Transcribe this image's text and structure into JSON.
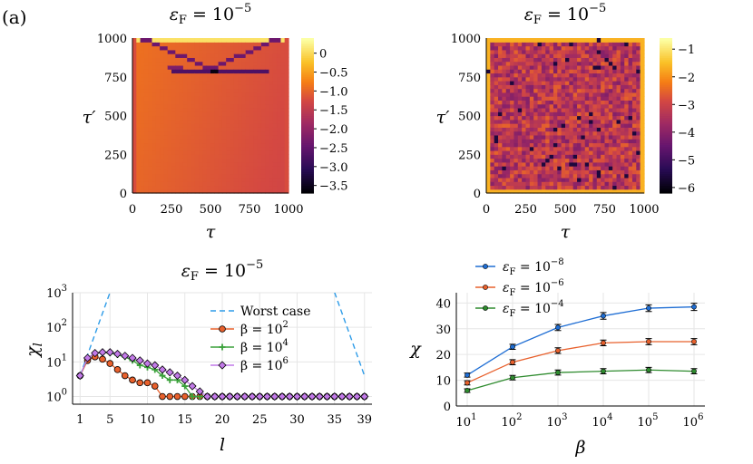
{
  "figure": {
    "panel_label": "(a)"
  },
  "chart_data": [
    {
      "type": "heatmap",
      "title": "εF = 10^-5",
      "title_sym": "ε",
      "title_sub": "F",
      "title_rest": " = 10",
      "title_exp": "−5",
      "xlabel": "τ",
      "ylabel": "τ′",
      "xlim": [
        0,
        1000
      ],
      "ylim": [
        0,
        1000
      ],
      "xticks": [
        "0",
        "250",
        "500",
        "750",
        "1000"
      ],
      "yticks": [
        "0",
        "250",
        "500",
        "750",
        "1000"
      ],
      "colorbar": {
        "min": -3.7,
        "max": 0.4,
        "ticks": [
          "0",
          "−0.5",
          "−1.0",
          "−1.5",
          "−2.0",
          "−2.5",
          "−3.0",
          "−3.5"
        ],
        "tick_values": [
          0,
          -0.5,
          -1.0,
          -1.5,
          -2.0,
          -2.5,
          -3.0,
          -3.5
        ],
        "colormap": "inferno"
      }
    },
    {
      "type": "heatmap",
      "title": "εF = 10^-5",
      "title_sym": "ε",
      "title_sub": "F",
      "title_rest": " = 10",
      "title_exp": "−5",
      "xlabel": "τ",
      "ylabel": "τ′",
      "xlim": [
        0,
        1000
      ],
      "ylim": [
        0,
        1000
      ],
      "xticks": [
        "0",
        "250",
        "500",
        "750",
        "1000"
      ],
      "yticks": [
        "0",
        "250",
        "500",
        "750",
        "1000"
      ],
      "colorbar": {
        "min": -6.2,
        "max": -0.6,
        "ticks": [
          "−1",
          "−2",
          "−3",
          "−4",
          "−5",
          "−6"
        ],
        "tick_values": [
          -1,
          -2,
          -3,
          -4,
          -5,
          -6
        ],
        "colormap": "inferno"
      }
    },
    {
      "type": "line",
      "title": "εF = 10^-5",
      "title_sym": "ε",
      "title_sub": "F",
      "title_rest": " = 10",
      "title_exp": "−5",
      "xlabel": "l",
      "ylabel": "χl",
      "yscale": "log",
      "ylim": [
        0.6,
        1000
      ],
      "xlim": [
        0,
        40
      ],
      "xticks": [
        1,
        5,
        10,
        15,
        20,
        25,
        30,
        35,
        39
      ],
      "ytick_exponents": [
        "0",
        "1",
        "2",
        "3"
      ],
      "legend_position": "top-right",
      "series": [
        {
          "name": "Worst case",
          "color": "#2e9ce8",
          "style": "dashed",
          "x": [
            1,
            2,
            3,
            4,
            5,
            35,
            36,
            37,
            38,
            39
          ],
          "y": [
            4,
            16,
            64,
            256,
            1024,
            1024,
            256,
            64,
            16,
            4
          ]
        },
        {
          "name": "β = 10^2",
          "label_base": "β = 10",
          "label_exp": "2",
          "color": "#e8602c",
          "marker": "circle",
          "x": [
            1,
            2,
            3,
            4,
            5,
            6,
            7,
            8,
            9,
            10,
            11,
            12,
            13,
            14,
            15,
            16,
            17,
            18,
            19,
            20,
            21,
            22,
            23,
            24,
            25,
            26,
            27,
            28,
            29,
            30,
            31,
            32,
            33,
            34,
            35,
            36,
            37,
            38,
            39
          ],
          "y": [
            4,
            11,
            14,
            12,
            9,
            6,
            4,
            3,
            2.5,
            2.5,
            2,
            1,
            1,
            1,
            1,
            1,
            1,
            1,
            1,
            1,
            1,
            1,
            1,
            1,
            1,
            1,
            1,
            1,
            1,
            1,
            1,
            1,
            1,
            1,
            1,
            1,
            1,
            1,
            1
          ]
        },
        {
          "name": "β = 10^4",
          "label_base": "β = 10",
          "label_exp": "4",
          "color": "#3aa13a",
          "marker": "plus",
          "x": [
            1,
            2,
            3,
            4,
            5,
            6,
            7,
            8,
            9,
            10,
            11,
            12,
            13,
            14,
            15,
            16,
            17,
            18,
            19,
            20,
            21,
            22,
            23,
            24,
            25,
            26,
            27,
            28,
            29,
            30,
            31,
            32,
            33,
            34,
            35,
            36,
            37,
            38,
            39
          ],
          "y": [
            4,
            13,
            18,
            19,
            18,
            16,
            14,
            11,
            8,
            7,
            6,
            4,
            3,
            3,
            2,
            1,
            1,
            1,
            1,
            1,
            1,
            1,
            1,
            1,
            1,
            1,
            1,
            1,
            1,
            1,
            1,
            1,
            1,
            1,
            1,
            1,
            1,
            1,
            1
          ]
        },
        {
          "name": "β = 10^6",
          "label_base": "β = 10",
          "label_exp": "6",
          "color": "#c27ae8",
          "marker": "diamond",
          "x": [
            1,
            2,
            3,
            4,
            5,
            6,
            7,
            8,
            9,
            10,
            11,
            12,
            13,
            14,
            15,
            16,
            17,
            18,
            19,
            20,
            21,
            22,
            23,
            24,
            25,
            26,
            27,
            28,
            29,
            30,
            31,
            32,
            33,
            34,
            35,
            36,
            37,
            38,
            39
          ],
          "y": [
            4,
            13,
            18,
            19,
            19,
            17,
            15,
            13,
            11,
            9,
            8,
            6,
            5,
            4,
            3,
            2,
            1.4,
            1,
            1,
            1,
            1,
            1,
            1,
            1,
            1,
            1,
            1,
            1,
            1,
            1,
            1,
            1,
            1,
            1,
            1,
            1,
            1,
            1,
            1
          ]
        }
      ]
    },
    {
      "type": "line",
      "title": "",
      "xlabel": "β",
      "ylabel": "χ",
      "xscale": "log",
      "ylim": [
        0,
        44
      ],
      "yticks": [
        0,
        10,
        20,
        30,
        40
      ],
      "xtick_exponents": [
        "1",
        "2",
        "3",
        "4",
        "5",
        "6"
      ],
      "legend_position": "top-left",
      "series": [
        {
          "name": "εF = 10^-8",
          "label_exp": "−8",
          "color": "#1f6ed4",
          "marker": "circle",
          "x_exp": [
            1,
            2,
            3,
            4,
            5,
            6
          ],
          "y": [
            12,
            23,
            30.5,
            35,
            38,
            38.5
          ],
          "err": [
            0.8,
            1,
            1.2,
            1.3,
            1.3,
            1.4
          ]
        },
        {
          "name": "εF = 10^-6",
          "label_exp": "−6",
          "color": "#e8602c",
          "marker": "circle",
          "x_exp": [
            1,
            2,
            3,
            4,
            5,
            6
          ],
          "y": [
            9,
            17,
            21.5,
            24.5,
            25,
            25
          ],
          "err": [
            0.8,
            1,
            1.1,
            1.1,
            1.2,
            1.2
          ]
        },
        {
          "name": "εF = 10^-4",
          "label_exp": "−4",
          "color": "#2e8b2e",
          "marker": "circle",
          "x_exp": [
            1,
            2,
            3,
            4,
            5,
            6
          ],
          "y": [
            6,
            11,
            13,
            13.5,
            14,
            13.5
          ],
          "err": [
            0.7,
            0.9,
            1,
            1,
            1,
            1
          ]
        }
      ]
    }
  ]
}
